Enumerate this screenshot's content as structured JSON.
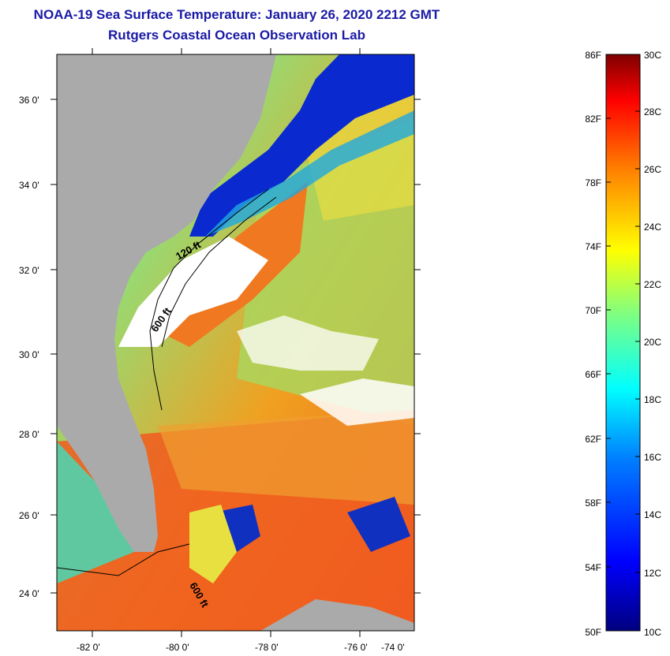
{
  "header": {
    "title": "NOAA-19 Sea Surface Temperature:  January 26, 2020 2212 GMT",
    "subtitle": "Rutgers Coastal Ocean Observation Lab"
  },
  "map": {
    "lat_labels": [
      "36 0'",
      "34 0'",
      "32 0'",
      "30 0'",
      "28 0'",
      "26 0'",
      "24 0'"
    ],
    "lon_labels": [
      "-82 0'",
      "-80 0'",
      "-78 0'",
      "-76 0'",
      "-74 0'"
    ],
    "contour_labels": [
      "120 ft",
      "600 ft",
      "600 ft"
    ],
    "colors": {
      "land": "#aaaaaa",
      "cloud": "#ffffff",
      "frame": "#000000"
    }
  },
  "colorbar": {
    "fahrenheit_labels": [
      "86F",
      "82F",
      "78F",
      "74F",
      "70F",
      "66F",
      "62F",
      "58F",
      "54F",
      "50F"
    ],
    "celsius_labels": [
      "30C",
      "28C",
      "26C",
      "24C",
      "22C",
      "20C",
      "18C",
      "16C",
      "14C",
      "12C",
      "10C"
    ],
    "colors": [
      "#00007f",
      "#0000ff",
      "#0080ff",
      "#00ffff",
      "#80ff80",
      "#ffff00",
      "#ff8000",
      "#ff0000",
      "#7f0000"
    ]
  }
}
